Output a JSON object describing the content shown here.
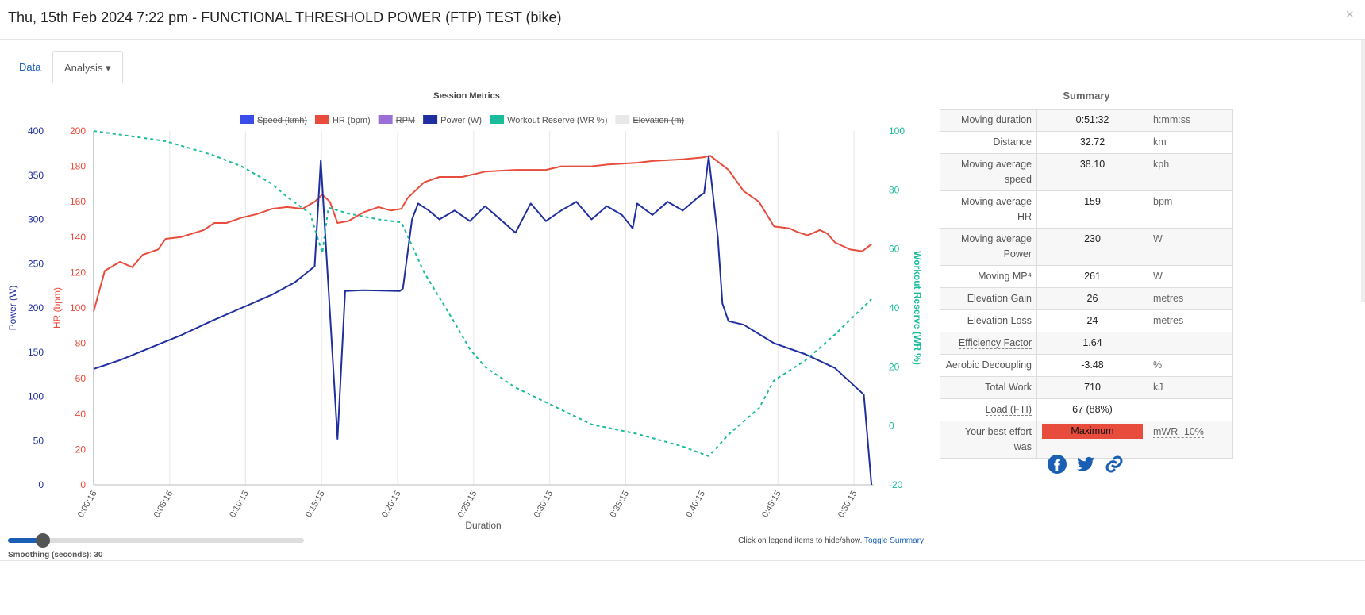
{
  "header": {
    "title": "Thu, 15th Feb 2024 7:22 pm - FUNCTIONAL THRESHOLD POWER (FTP) TEST (bike)",
    "close": "×"
  },
  "tabs": [
    {
      "label": "Data"
    },
    {
      "label": "Analysis ▾"
    }
  ],
  "chart_data": {
    "type": "line",
    "title": "Session Metrics",
    "xlabel": "Duration",
    "x_unit": "minutes",
    "xlim": [
      0.27,
      51.55
    ],
    "x_ticks": [
      {
        "t": 0.27,
        "label": "0:00:16"
      },
      {
        "t": 5.27,
        "label": "0:05:16"
      },
      {
        "t": 10.25,
        "label": "0:10:15"
      },
      {
        "t": 15.25,
        "label": "0:15:15"
      },
      {
        "t": 20.25,
        "label": "0:20:15"
      },
      {
        "t": 25.25,
        "label": "0:25:15"
      },
      {
        "t": 30.25,
        "label": "0:30:15"
      },
      {
        "t": 35.25,
        "label": "0:35:15"
      },
      {
        "t": 40.25,
        "label": "0:40:15"
      },
      {
        "t": 45.25,
        "label": "0:45:15"
      },
      {
        "t": 50.25,
        "label": "0:50:15"
      }
    ],
    "axes": {
      "power": {
        "label": "Power (W)",
        "range": [
          0,
          400
        ],
        "ticks": [
          0,
          50,
          100,
          150,
          200,
          250,
          300,
          350,
          400
        ],
        "color": "#1f2fa0"
      },
      "hr": {
        "label": "HR (bpm)",
        "range": [
          0,
          200
        ],
        "ticks": [
          0,
          20,
          40,
          60,
          80,
          100,
          120,
          140,
          160,
          180,
          200
        ],
        "color": "#e74c3c"
      },
      "wr": {
        "label": "Workout Reserve (WR %)",
        "range": [
          -20,
          100
        ],
        "ticks": [
          -20,
          0,
          20,
          40,
          60,
          80,
          100
        ],
        "color": "#1abc9c"
      }
    },
    "legend": [
      {
        "name": "Speed (kmh)",
        "color": "#3a4de8",
        "hidden": true
      },
      {
        "name": "HR (bpm)",
        "color": "#e74c3c",
        "hidden": false
      },
      {
        "name": "RPM",
        "color": "#9b6fd6",
        "hidden": true
      },
      {
        "name": "Power (W)",
        "color": "#1f2fa0",
        "hidden": false
      },
      {
        "name": "Workout Reserve (WR %)",
        "color": "#1abc9c",
        "hidden": false
      },
      {
        "name": "Elevation (m)",
        "color": "#e8e8e8",
        "hidden": true
      }
    ],
    "series": [
      {
        "name": "HR (bpm)",
        "axis": "hr",
        "color": "#e74c3c",
        "dashed": false,
        "points": [
          [
            0.27,
            98
          ],
          [
            1,
            121
          ],
          [
            2,
            126
          ],
          [
            2.8,
            123
          ],
          [
            3.5,
            130
          ],
          [
            4.5,
            133
          ],
          [
            5,
            139
          ],
          [
            6,
            140
          ],
          [
            7.5,
            144
          ],
          [
            8.2,
            148
          ],
          [
            9,
            148
          ],
          [
            10,
            151
          ],
          [
            11,
            153
          ],
          [
            12,
            156
          ],
          [
            13,
            157
          ],
          [
            14,
            156
          ],
          [
            14.8,
            160
          ],
          [
            15.3,
            164
          ],
          [
            15.8,
            160
          ],
          [
            16.3,
            148
          ],
          [
            17,
            149
          ],
          [
            18,
            154
          ],
          [
            19,
            157
          ],
          [
            19.8,
            155
          ],
          [
            20.5,
            156
          ],
          [
            20.9,
            162
          ],
          [
            22,
            171
          ],
          [
            23,
            174
          ],
          [
            24.5,
            174
          ],
          [
            26,
            177
          ],
          [
            28,
            178
          ],
          [
            30,
            178
          ],
          [
            31,
            180
          ],
          [
            33,
            180
          ],
          [
            34,
            181
          ],
          [
            36,
            182
          ],
          [
            37,
            183
          ],
          [
            39,
            184
          ],
          [
            40.3,
            185
          ],
          [
            40.8,
            186
          ],
          [
            42,
            178
          ],
          [
            43,
            166
          ],
          [
            44,
            160
          ],
          [
            45,
            146
          ],
          [
            46,
            145
          ],
          [
            46.5,
            143
          ],
          [
            47.2,
            141
          ],
          [
            48,
            144
          ],
          [
            48.5,
            142
          ],
          [
            49,
            137
          ],
          [
            50,
            133
          ],
          [
            50.8,
            132
          ],
          [
            51.4,
            136
          ]
        ]
      },
      {
        "name": "Power (W)",
        "axis": "power",
        "color": "#1f2fa0",
        "dashed": false,
        "points": [
          [
            0.27,
            131
          ],
          [
            2,
            141
          ],
          [
            4,
            155
          ],
          [
            6,
            169
          ],
          [
            8,
            185
          ],
          [
            10,
            200
          ],
          [
            12,
            215
          ],
          [
            13.5,
            229
          ],
          [
            14.8,
            247
          ],
          [
            15.2,
            367
          ],
          [
            16.3,
            52
          ],
          [
            16.8,
            219
          ],
          [
            18,
            220
          ],
          [
            20.4,
            219
          ],
          [
            20.6,
            222
          ],
          [
            21.2,
            300
          ],
          [
            21.6,
            318
          ],
          [
            22.3,
            310
          ],
          [
            23,
            300
          ],
          [
            24,
            310
          ],
          [
            25,
            298
          ],
          [
            26,
            315
          ],
          [
            27,
            300
          ],
          [
            28,
            285
          ],
          [
            29,
            318
          ],
          [
            30,
            298
          ],
          [
            31,
            310
          ],
          [
            32,
            320
          ],
          [
            33,
            300
          ],
          [
            34,
            315
          ],
          [
            35,
            305
          ],
          [
            35.7,
            290
          ],
          [
            36,
            318
          ],
          [
            37,
            305
          ],
          [
            38,
            320
          ],
          [
            39,
            310
          ],
          [
            40,
            325
          ],
          [
            40.4,
            330
          ],
          [
            40.7,
            371
          ],
          [
            41.3,
            280
          ],
          [
            41.6,
            205
          ],
          [
            42,
            185
          ],
          [
            43,
            181
          ],
          [
            45,
            160
          ],
          [
            47,
            148
          ],
          [
            49,
            132
          ],
          [
            50.9,
            102
          ],
          [
            51.4,
            0
          ]
        ]
      },
      {
        "name": "Workout Reserve (WR %)",
        "axis": "wr",
        "color": "#1abc9c",
        "dashed": true,
        "points": [
          [
            0.27,
            100
          ],
          [
            3,
            98
          ],
          [
            5,
            96.5
          ],
          [
            8,
            92
          ],
          [
            10,
            88
          ],
          [
            12,
            82
          ],
          [
            13,
            77.6
          ],
          [
            14.5,
            72
          ],
          [
            15.3,
            58.6
          ],
          [
            15.7,
            74
          ],
          [
            17,
            72
          ],
          [
            19,
            70
          ],
          [
            20.5,
            69
          ],
          [
            22,
            52
          ],
          [
            24,
            35
          ],
          [
            25,
            26
          ],
          [
            26,
            20
          ],
          [
            28,
            13
          ],
          [
            30,
            8
          ],
          [
            33,
            0.5
          ],
          [
            36,
            -2.7
          ],
          [
            39,
            -7
          ],
          [
            40.7,
            -10.3
          ],
          [
            42,
            -3
          ],
          [
            44,
            6
          ],
          [
            45,
            15.4
          ],
          [
            47,
            22
          ],
          [
            49,
            31
          ],
          [
            51.4,
            43
          ]
        ]
      }
    ]
  },
  "summary": {
    "title": "Summary",
    "rows": [
      {
        "label": "Moving duration",
        "value": "0:51:32",
        "unit": "h:mm:ss"
      },
      {
        "label": "Distance",
        "value": "32.72",
        "unit": "km"
      },
      {
        "label": "Moving average speed",
        "value": "38.10",
        "unit": "kph"
      },
      {
        "label": "Moving average HR",
        "value": "159",
        "unit": "bpm"
      },
      {
        "label": "Moving average Power",
        "value": "230",
        "unit": "W"
      },
      {
        "label": "Moving MP⁴",
        "value": "261",
        "unit": "W"
      },
      {
        "label": "Elevation Gain",
        "value": "26",
        "unit": "metres"
      },
      {
        "label": "Elevation Loss",
        "value": "24",
        "unit": "metres"
      },
      {
        "label": "Efficiency Factor",
        "value": "1.64",
        "unit": ""
      },
      {
        "label": "Aerobic Decoupling",
        "value": "-3.48",
        "unit": "%"
      },
      {
        "label": "Total Work",
        "value": "710",
        "unit": "kJ"
      },
      {
        "label": "Load (FTI)",
        "value": "67 (88%)",
        "unit": ""
      },
      {
        "label": "Your best effort was",
        "value": "Maximum",
        "unit": "mWR -10%"
      }
    ]
  },
  "footer": {
    "smoothing_label": "Smoothing (seconds): 30",
    "smoothing_value": 30,
    "hint": "Click on legend items to hide/show.",
    "toggle": "Toggle Summary"
  }
}
